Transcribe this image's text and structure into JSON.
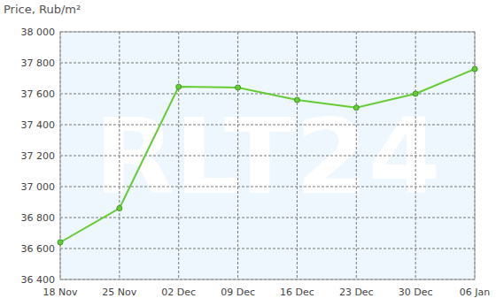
{
  "chart_data": {
    "type": "line",
    "title": "Price, Rub/m²",
    "annotations": [
      "RLT24"
    ],
    "categories": [
      "18 Nov",
      "25 Nov",
      "02 Dec",
      "09 Dec",
      "16 Dec",
      "23 Dec",
      "30 Dec",
      "06 Jan"
    ],
    "values": [
      36640,
      36860,
      37645,
      37640,
      37560,
      37510,
      37600,
      37760
    ],
    "color": "#66cc33",
    "marker": "circle",
    "ylim": [
      36400,
      38000
    ],
    "yticks": [
      {
        "value": 36400,
        "label": "36 400"
      },
      {
        "value": 36600,
        "label": "36 600"
      },
      {
        "value": 36800,
        "label": "36 800"
      },
      {
        "value": 37000,
        "label": "37 000"
      },
      {
        "value": 37200,
        "label": "37 200"
      },
      {
        "value": 37400,
        "label": "37 400"
      },
      {
        "value": 37600,
        "label": "37 600"
      },
      {
        "value": 37800,
        "label": "37 800"
      },
      {
        "value": 38000,
        "label": "38 000"
      }
    ],
    "grid": true
  }
}
